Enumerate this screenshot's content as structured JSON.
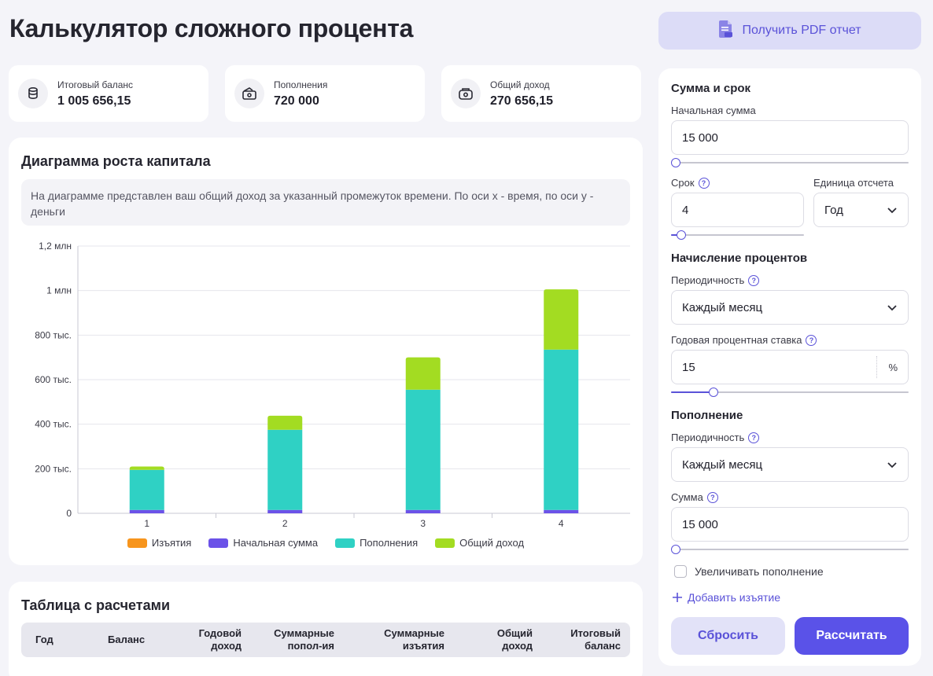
{
  "page": {
    "title": "Калькулятор сложного процента"
  },
  "header": {
    "pdf_button_label": "Получить PDF отчет"
  },
  "summary": [
    {
      "label": "Итоговый баланс",
      "value": "1 005 656,15",
      "icon": "coins-icon"
    },
    {
      "label": "Пополнения",
      "value": "720 000",
      "icon": "wallet-icon"
    },
    {
      "label": "Общий доход",
      "value": "270 656,15",
      "icon": "income-icon"
    }
  ],
  "chart_section": {
    "title": "Диаграмма роста капитала",
    "description": "На диаграмме представлен ваш общий доход за указанный промежуток времени. По оси x - время, по оси y - деньги"
  },
  "chart_data": {
    "type": "bar",
    "stacked": true,
    "categories": [
      "1",
      "2",
      "3",
      "4"
    ],
    "series": [
      {
        "name": "Изъятия",
        "color": "#f7951d",
        "values": [
          0,
          0,
          0,
          0
        ]
      },
      {
        "name": "Начальная сумма",
        "color": "#6b52e8",
        "values": [
          15000,
          15000,
          15000,
          15000
        ]
      },
      {
        "name": "Пополнения",
        "color": "#2fd1c4",
        "values": [
          180000,
          360000,
          540000,
          720000
        ]
      },
      {
        "name": "Общий доход",
        "color": "#a3dc22",
        "values": [
          15000,
          63000,
          145000,
          270656
        ]
      }
    ],
    "ylim": [
      0,
      1200000
    ],
    "yticks": [
      0,
      200000,
      400000,
      600000,
      800000,
      1000000,
      1200000
    ],
    "ytick_labels": [
      "0",
      "200 тыс.",
      "400 тыс.",
      "600 тыс.",
      "800 тыс.",
      "1 млн",
      "1,2 млн"
    ],
    "grid": true,
    "legend_position": "bottom"
  },
  "table_section": {
    "title": "Таблица с расчетами",
    "columns": [
      "Год",
      "Баланс",
      "Годовой доход",
      "Суммарные попол-ия",
      "Суммарные изъятия",
      "Общий доход",
      "Итоговый баланс"
    ]
  },
  "settings": {
    "term_section_title": "Сумма и срок",
    "initial_amount": {
      "label": "Начальная сумма",
      "value": "15 000",
      "slider": 0.0
    },
    "term": {
      "label": "Срок",
      "value": "4",
      "slider": 0.04
    },
    "unit": {
      "label": "Единица отсчета",
      "value": "Год"
    },
    "interest_section_title": "Начисление процентов",
    "interest_frequency": {
      "label": "Периодичность",
      "value": "Каждый месяц"
    },
    "annual_rate": {
      "label": "Годовая процентная ставка",
      "value": "15",
      "unit": "%",
      "slider": 0.16
    },
    "deposit_section_title": "Пополнение",
    "deposit_frequency": {
      "label": "Периодичность",
      "value": "Каждый месяц"
    },
    "deposit_amount": {
      "label": "Сумма",
      "value": "15 000",
      "slider": 0.0
    },
    "increase_deposit_label": "Увеличивать пополнение",
    "add_withdrawal_label": "Добавить изъятие",
    "reset_label": "Сбросить",
    "calculate_label": "Рассчитать"
  }
}
